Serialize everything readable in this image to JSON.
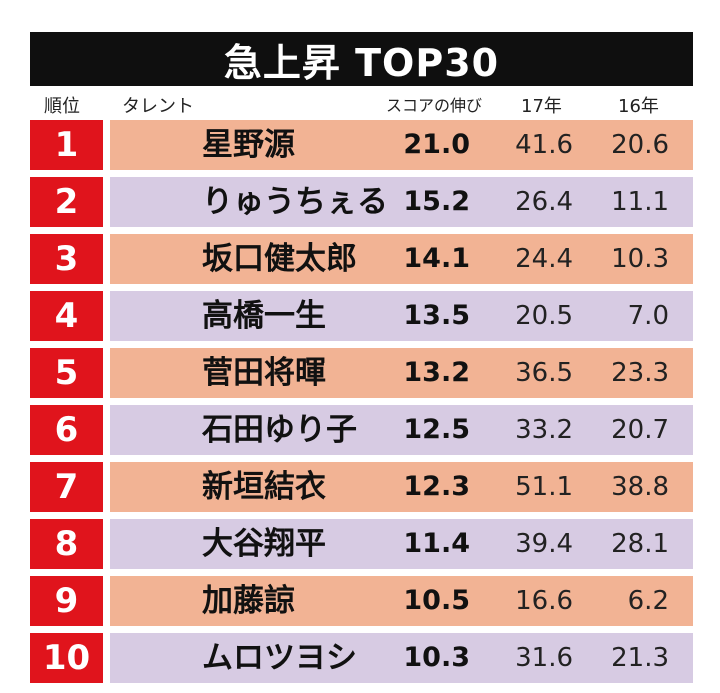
{
  "title": "急上昇 TOP30",
  "headers": {
    "rank": "順位",
    "talent": "タレント",
    "growth": "スコアの伸び",
    "y17": "17年",
    "y16": "16年"
  },
  "rows": [
    {
      "rank": "1",
      "name": "星野源",
      "growth": "21.0",
      "y17": "41.6",
      "y16": "20.6"
    },
    {
      "rank": "2",
      "name": "りゅうちぇる",
      "growth": "15.2",
      "y17": "26.4",
      "y16": "11.1"
    },
    {
      "rank": "3",
      "name": "坂口健太郎",
      "growth": "14.1",
      "y17": "24.4",
      "y16": "10.3"
    },
    {
      "rank": "4",
      "name": "高橋一生",
      "growth": "13.5",
      "y17": "20.5",
      "y16": "7.0"
    },
    {
      "rank": "5",
      "name": "菅田将暉",
      "growth": "13.2",
      "y17": "36.5",
      "y16": "23.3"
    },
    {
      "rank": "6",
      "name": "石田ゆり子",
      "growth": "12.5",
      "y17": "33.2",
      "y16": "20.7"
    },
    {
      "rank": "7",
      "name": "新垣結衣",
      "growth": "12.3",
      "y17": "51.1",
      "y16": "38.8"
    },
    {
      "rank": "8",
      "name": "大谷翔平",
      "growth": "11.4",
      "y17": "39.4",
      "y16": "28.1"
    },
    {
      "rank": "9",
      "name": "加藤諒",
      "growth": "10.5",
      "y17": "16.6",
      "y16": "6.2"
    },
    {
      "rank": "10",
      "name": "ムロツヨシ",
      "growth": "10.3",
      "y17": "31.6",
      "y16": "21.3"
    }
  ],
  "colors": {
    "title_bg": "#0f0f0f",
    "rank_bg": "#e0141c",
    "row_odd": "#f2b394",
    "row_even": "#d7cbe3"
  }
}
